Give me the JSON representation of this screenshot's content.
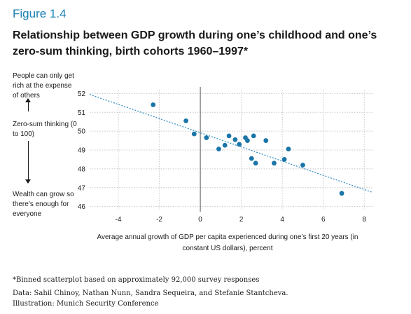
{
  "figure": {
    "label": "Figure 1.4",
    "title": "Relationship between GDP growth during one’s childhood and one’s zero-sum thinking, birth cohorts 1960–1997*"
  },
  "side_labels": {
    "top": "People can only get rich at the expense of others",
    "middle": "Zero-sum thinking (0 to 100)",
    "bottom": "Wealth can grow so there’s enough for everyone"
  },
  "footnotes": {
    "note": "*Binned scatterplot based on approximately 92,000 survey responses",
    "data": "Data: Sahil Chinoy, Nathan Nunn, Sandra Sequeira, and Stefanie Stantcheva.",
    "illustration": "Illustration: Munich Security Conference"
  },
  "chart_data": {
    "type": "scatter",
    "title": "Relationship between GDP growth during one’s childhood and one’s zero-sum thinking, birth cohorts 1960–1997*",
    "xlabel": "Average annual growth of GDP per capita experienced during one’s first 20 years (in constant US dollars), percent",
    "ylabel": "Zero-sum thinking (0 to 100)",
    "xlim": [
      -5.4,
      8.4
    ],
    "ylim": [
      45.8,
      52.2
    ],
    "x_ticks": [
      -4,
      -2,
      0,
      2,
      4,
      6,
      8
    ],
    "y_ticks": [
      46,
      47,
      48,
      49,
      50,
      51,
      52
    ],
    "grid": true,
    "points": [
      {
        "x": -2.3,
        "y": 51.4
      },
      {
        "x": -0.7,
        "y": 50.55
      },
      {
        "x": -0.3,
        "y": 49.85
      },
      {
        "x": 0.3,
        "y": 49.65
      },
      {
        "x": 0.9,
        "y": 49.05
      },
      {
        "x": 1.2,
        "y": 49.25
      },
      {
        "x": 1.4,
        "y": 49.75
      },
      {
        "x": 1.7,
        "y": 49.55
      },
      {
        "x": 1.9,
        "y": 49.3
      },
      {
        "x": 2.2,
        "y": 49.65
      },
      {
        "x": 2.3,
        "y": 49.5
      },
      {
        "x": 2.6,
        "y": 49.75
      },
      {
        "x": 2.5,
        "y": 48.55
      },
      {
        "x": 2.7,
        "y": 48.3
      },
      {
        "x": 3.2,
        "y": 49.5
      },
      {
        "x": 3.6,
        "y": 48.3
      },
      {
        "x": 4.1,
        "y": 48.5
      },
      {
        "x": 4.3,
        "y": 49.05
      },
      {
        "x": 5.0,
        "y": 48.2
      },
      {
        "x": 6.9,
        "y": 46.7
      }
    ],
    "trend_line": {
      "x": [
        -5.4,
        8.4
      ],
      "y": [
        51.95,
        46.75
      ]
    },
    "colors": {
      "points": "#1a75a8",
      "trend": "#2a8ac4",
      "grid": "#c8c8c8",
      "zero_line": "#555555",
      "accent": "#1a80b4"
    }
  }
}
